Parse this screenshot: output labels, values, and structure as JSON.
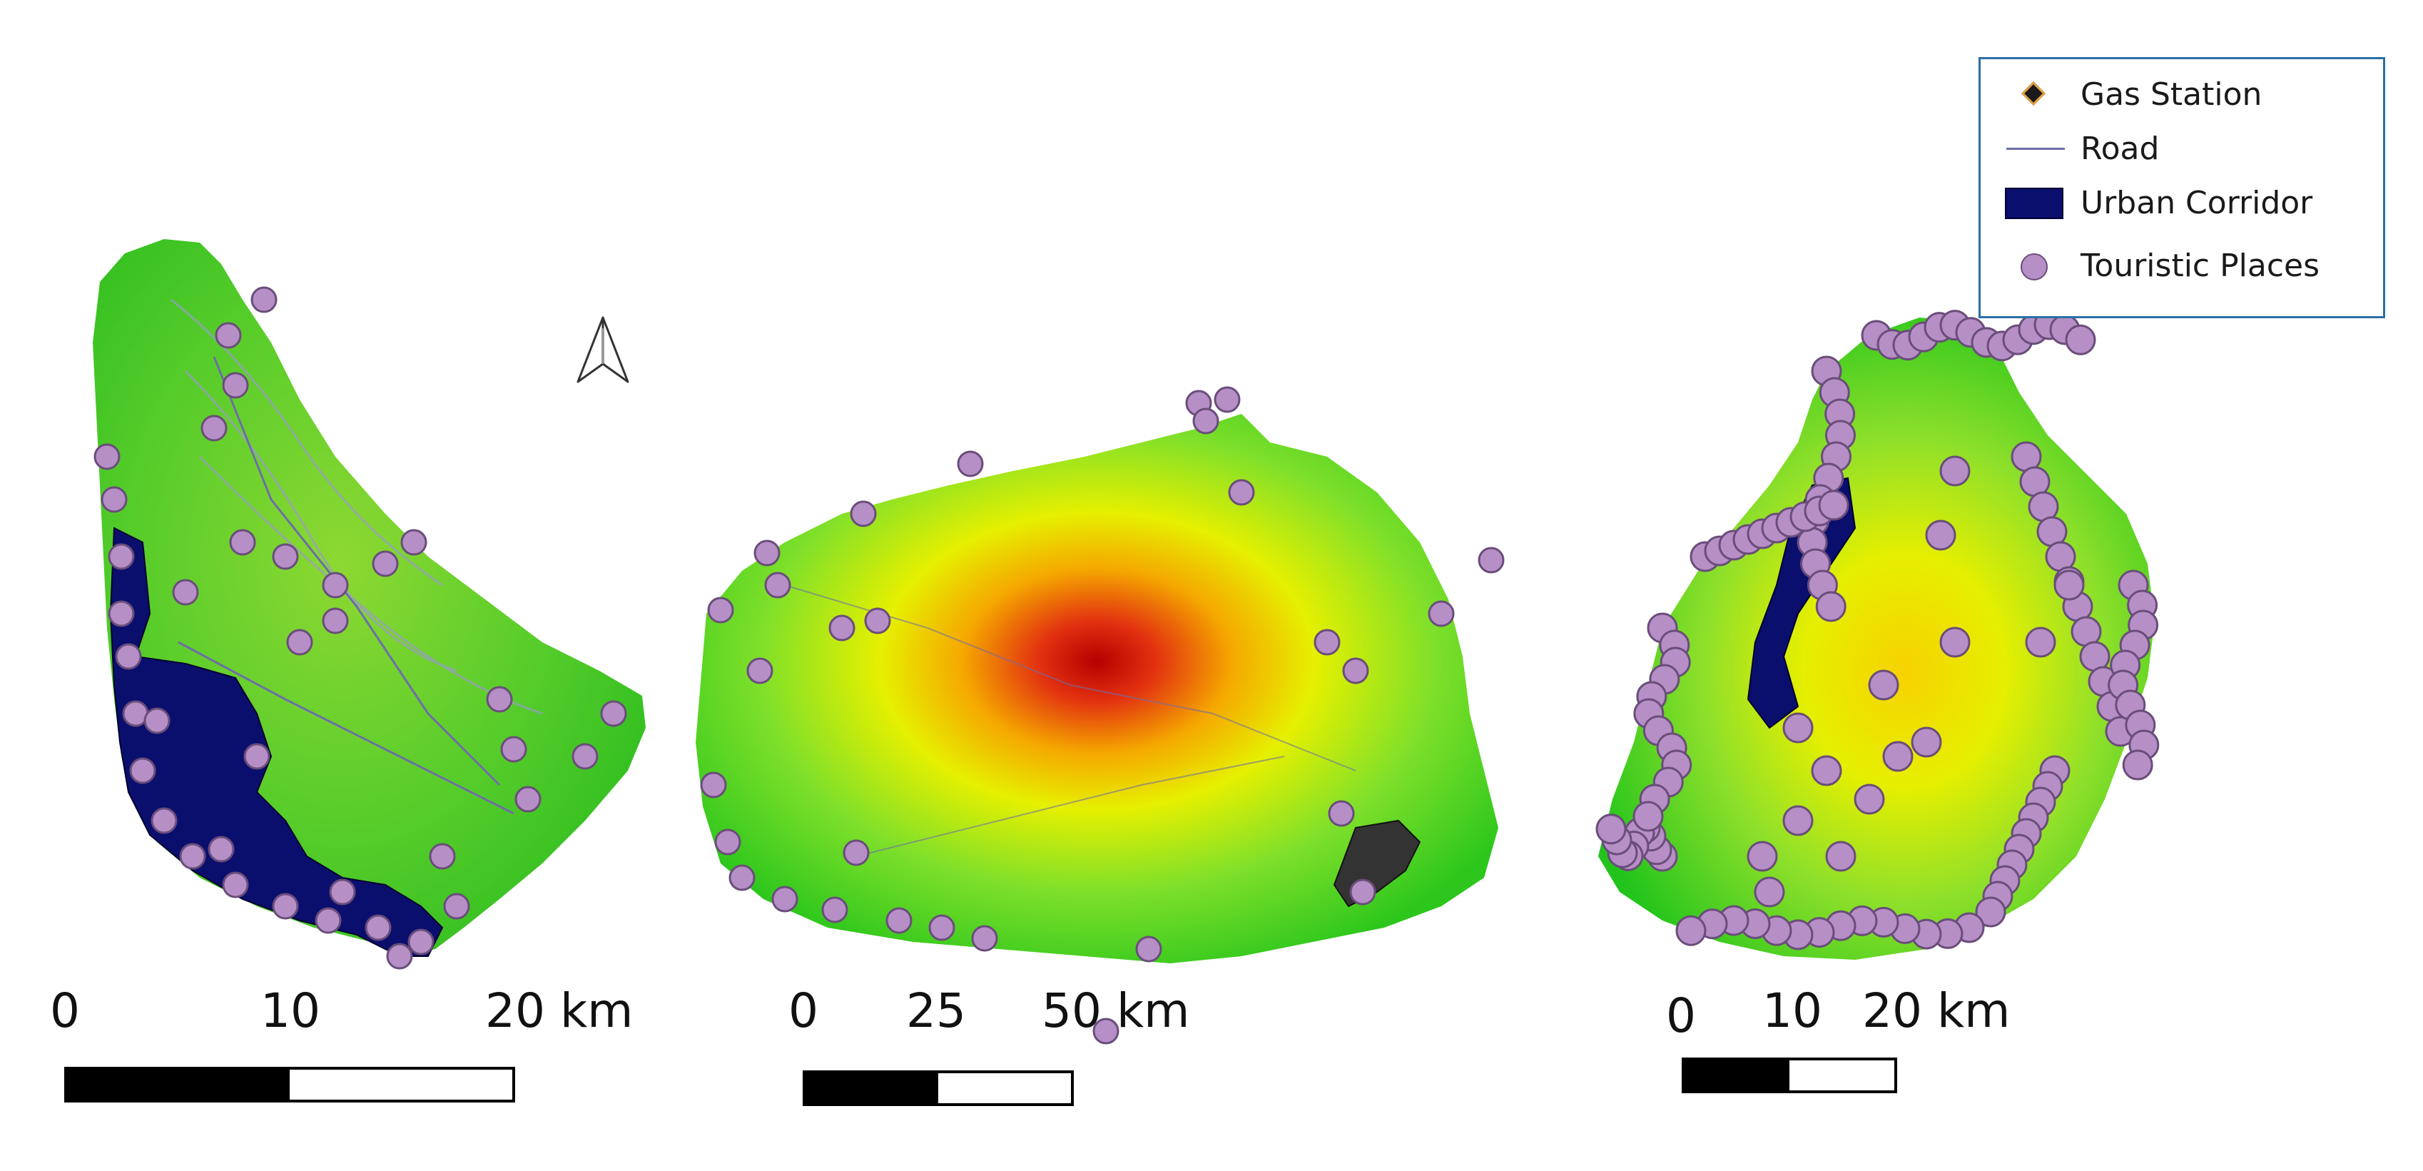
{
  "legend": {
    "gas_station": "Gas Station",
    "road": "Road",
    "urban_corridor": "Urban Corridor",
    "touristic_places": "Touristic Places"
  },
  "colors": {
    "urban": "#0a0f6e",
    "tourist_fill": "#b58fc6",
    "tourist_stroke": "#6a4d7a",
    "road": "#6e6ea8",
    "gas_station": "#1a1a1a",
    "legend_border": "#2a6fa5"
  },
  "icons": {
    "north_arrow": "north-arrow-icon"
  },
  "scalebars": [
    {
      "labels": [
        "0",
        "10",
        "20 km"
      ]
    },
    {
      "labels": [
        "0",
        "25",
        "50 km"
      ]
    },
    {
      "labels": [
        "0",
        "10",
        "20 km"
      ]
    }
  ]
}
